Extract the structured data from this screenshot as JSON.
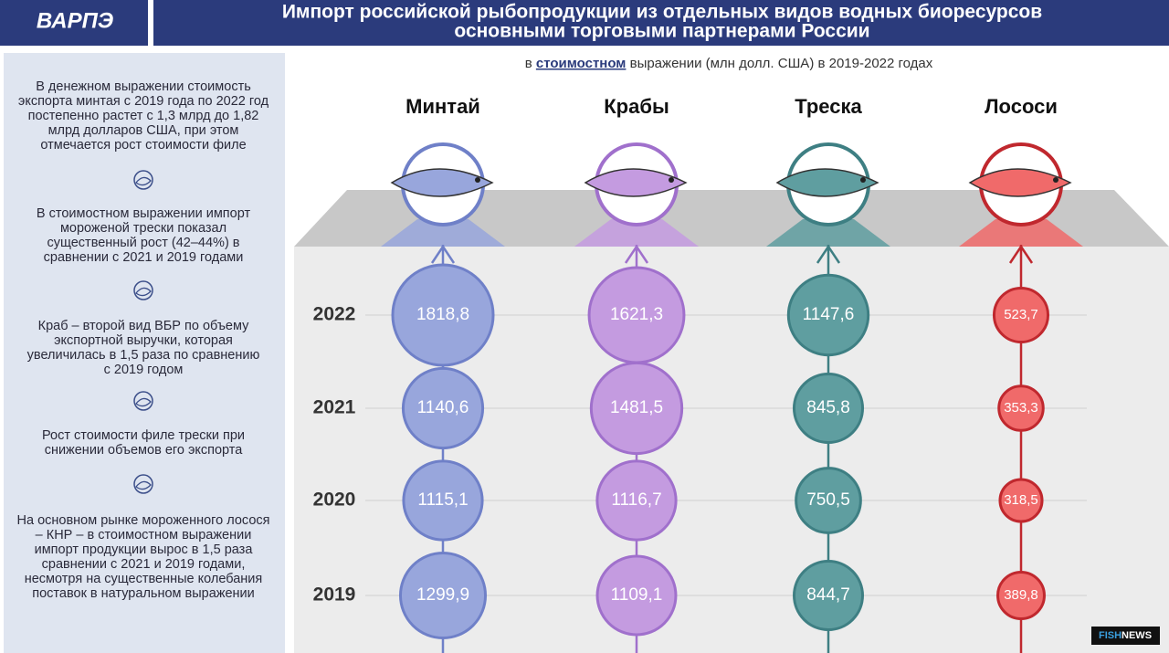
{
  "header": {
    "logo": "ВАРПЭ",
    "title_lines": [
      "Импорт российской рыбопродукции из отдельных видов водных биоресурсов",
      "основными торговыми партнерами России"
    ]
  },
  "sidebar": {
    "notes": [
      [
        "В денежном выражении стоимость",
        "экспорта минтая с 2019 года по 2022 год",
        "постепенно растет с 1,3 млрд до 1,82",
        "млрд долларов США, при этом",
        "отмечается рост стоимости филе"
      ],
      [
        "В стоимостном выражении импорт",
        "мороженой трески показал",
        "существенный рост (42–44%) в",
        "сравнении с 2021 и 2019 годами"
      ],
      [
        "Краб – второй вид ВБР по объему",
        "экспортной выручки, которая",
        "увеличилась в 1,5 раза по сравнению",
        "с 2019 годом"
      ],
      [
        "Рост стоимости филе трески при",
        "снижении объемов его экспорта"
      ],
      [
        "На основном рынке мороженного лосося",
        "– КНР – в стоимостном выражении",
        "импорт продукции вырос в 1,5 раза",
        "сравнении с 2021 и 2019 годами,",
        "несмотря на существенные колебания",
        "поставок в натуральном выражении"
      ]
    ]
  },
  "footer": {
    "source_parts": [
      "FISH",
      "NEWS"
    ]
  },
  "chart_data": {
    "type": "bubble",
    "subtitle_parts": [
      "в",
      "стоимостном",
      "выражении (млн долл. США) в 2019-2022 годах"
    ],
    "categories": [
      "2022",
      "2021",
      "2020",
      "2019"
    ],
    "series": [
      {
        "name": "Минтай",
        "color": "#98a6dc",
        "stroke": "#6f80c8",
        "values": [
          1818.8,
          1140.6,
          1115.1,
          1299.9
        ],
        "value_labels": [
          "1818,8",
          "1140,6",
          "1115,1",
          "1299,9"
        ]
      },
      {
        "name": "Крабы",
        "color": "#c49be0",
        "stroke": "#a070cc",
        "values": [
          1621.3,
          1481.5,
          1116.7,
          1109.1
        ],
        "value_labels": [
          "1621,3",
          "1481,5",
          "1116,7",
          "1109,1"
        ]
      },
      {
        "name": "Треска",
        "color": "#5f9ea0",
        "stroke": "#3e7f83",
        "values": [
          1147.6,
          845.8,
          750.5,
          844.7
        ],
        "value_labels": [
          "1147,6",
          "845,8",
          "750,5",
          "844,7"
        ]
      },
      {
        "name": "Лососи",
        "color": "#f06a6a",
        "stroke": "#c0282e",
        "values": [
          523.7,
          353.3,
          318.5,
          389.8
        ],
        "value_labels": [
          "523,7",
          "353,3",
          "318,5",
          "389,8"
        ]
      }
    ]
  }
}
